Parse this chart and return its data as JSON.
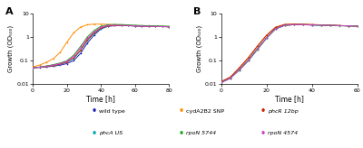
{
  "panel_A": {
    "time": [
      0,
      4,
      8,
      12,
      16,
      20,
      24,
      28,
      32,
      36,
      40,
      44,
      48,
      52,
      56,
      60,
      64,
      68,
      72,
      76,
      80
    ],
    "wild_type": [
      0.05,
      0.052,
      0.055,
      0.058,
      0.065,
      0.075,
      0.1,
      0.2,
      0.55,
      1.2,
      2.2,
      2.8,
      3.0,
      3.1,
      3.0,
      2.9,
      2.85,
      2.8,
      2.75,
      2.75,
      2.7
    ],
    "cydA2B2_SNP": [
      0.055,
      0.065,
      0.085,
      0.12,
      0.22,
      0.6,
      1.5,
      2.6,
      3.3,
      3.5,
      3.5,
      3.4,
      3.3,
      3.2,
      3.1,
      3.0,
      2.95,
      2.9,
      2.85,
      2.8,
      2.75
    ],
    "phcA_US": [
      0.05,
      0.053,
      0.057,
      0.062,
      0.07,
      0.085,
      0.12,
      0.26,
      0.7,
      1.4,
      2.3,
      2.9,
      3.05,
      3.1,
      3.0,
      2.95,
      2.9,
      2.85,
      2.8,
      2.75,
      2.7
    ],
    "phcR_12bp": [
      0.05,
      0.053,
      0.057,
      0.062,
      0.07,
      0.088,
      0.13,
      0.28,
      0.75,
      1.5,
      2.4,
      2.95,
      3.05,
      3.1,
      3.0,
      2.95,
      2.9,
      2.85,
      2.8,
      2.75,
      2.7
    ],
    "rpoN_5744": [
      0.05,
      0.054,
      0.06,
      0.068,
      0.08,
      0.1,
      0.17,
      0.4,
      1.0,
      1.9,
      2.85,
      3.3,
      3.4,
      3.35,
      3.25,
      3.15,
      3.05,
      3.0,
      2.95,
      2.9,
      2.85
    ],
    "rpoN_4574": [
      0.05,
      0.053,
      0.058,
      0.065,
      0.075,
      0.095,
      0.15,
      0.35,
      0.88,
      1.65,
      2.6,
      3.1,
      3.15,
      3.1,
      3.05,
      2.95,
      2.9,
      2.85,
      2.8,
      2.75,
      2.7
    ],
    "xlim": [
      0,
      80
    ],
    "xticks": [
      0,
      20,
      40,
      60,
      80
    ]
  },
  "panel_B": {
    "time": [
      0,
      4,
      8,
      12,
      16,
      20,
      24,
      28,
      32,
      36,
      40,
      44,
      48,
      52,
      56,
      60
    ],
    "wild_type": [
      0.012,
      0.018,
      0.04,
      0.1,
      0.3,
      0.9,
      2.2,
      3.1,
      3.3,
      3.3,
      3.2,
      3.15,
      3.1,
      3.0,
      2.95,
      2.9
    ],
    "cydA2B2_SNP": [
      0.013,
      0.02,
      0.048,
      0.13,
      0.4,
      1.15,
      2.55,
      3.35,
      3.5,
      3.45,
      3.35,
      3.25,
      3.15,
      3.05,
      2.95,
      2.9
    ],
    "phcA_US": [
      0.012,
      0.018,
      0.042,
      0.11,
      0.33,
      0.95,
      2.3,
      3.15,
      3.35,
      3.35,
      3.25,
      3.18,
      3.12,
      3.02,
      2.95,
      2.9
    ],
    "phcR_12bp": [
      0.013,
      0.02,
      0.05,
      0.135,
      0.42,
      1.2,
      2.6,
      3.4,
      3.5,
      3.45,
      3.35,
      3.25,
      3.15,
      3.05,
      2.95,
      2.9
    ],
    "rpoN_5744": [
      0.012,
      0.018,
      0.04,
      0.1,
      0.3,
      0.9,
      2.2,
      3.1,
      3.3,
      3.3,
      3.22,
      3.15,
      3.08,
      2.98,
      2.93,
      2.88
    ],
    "rpoN_4574": [
      0.012,
      0.018,
      0.041,
      0.105,
      0.32,
      0.92,
      2.25,
      3.12,
      3.32,
      3.32,
      3.23,
      3.16,
      3.1,
      3.0,
      2.93,
      2.88
    ],
    "xlim": [
      0,
      60
    ],
    "xticks": [
      0,
      20,
      40,
      60
    ]
  },
  "colors": {
    "wild_type": "#2222bb",
    "cydA2B2_SNP": "#ff8c00",
    "phcA_US": "#00aaaa",
    "phcR_12bp": "#cc2200",
    "rpoN_5744": "#22aa22",
    "rpoN_4574": "#cc44cc"
  },
  "ylim": [
    0.01,
    10
  ],
  "yticks": [
    0.01,
    0.1,
    1,
    10
  ],
  "ylabel": "Growth (OD₅₀₀)",
  "xlabel": "Time [h]",
  "legend_row1": [
    "wild_type",
    "cydA2B2_SNP",
    "phcR_12bp"
  ],
  "legend_row2": [
    "phcA_US",
    "rpoN_5744",
    "rpoN_4574"
  ],
  "legend_labels": {
    "wild_type": "wild type",
    "cydA2B2_SNP": "cydA2B2 SNP",
    "phcA_US": "phcA US",
    "phcR_12bp": "phcR 12bp",
    "rpoN_5744": "rpoN 5744",
    "rpoN_4574": "rpoN 4574"
  },
  "legend_italic": {
    "wild_type": false,
    "cydA2B2_SNP": false,
    "phcA_US": true,
    "phcR_12bp": true,
    "rpoN_5744": true,
    "rpoN_4574": true
  }
}
